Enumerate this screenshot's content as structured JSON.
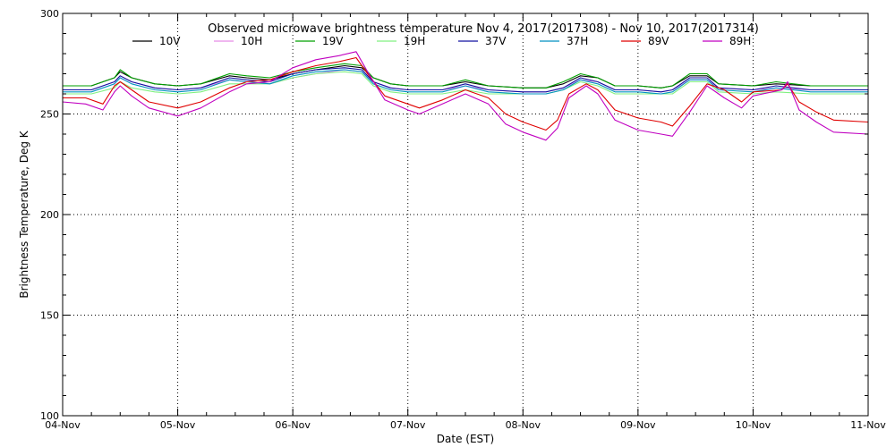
{
  "chart_data": {
    "type": "line",
    "title": "Observed microwave brightness temperature Nov  4, 2017(2017308) - Nov 10, 2017(2017314)",
    "xlabel": "Date (EST)",
    "ylabel": "Brightness Temperature, Deg K",
    "xlim": [
      0,
      7
    ],
    "ylim": [
      100,
      300
    ],
    "grid": true,
    "legend_position": "top",
    "x_tick_labels": [
      "04-Nov",
      "05-Nov",
      "06-Nov",
      "07-Nov",
      "08-Nov",
      "09-Nov",
      "10-Nov",
      "11-Nov"
    ],
    "y_tick_labels": [
      "100",
      "150",
      "200",
      "250",
      "300"
    ],
    "x_units": "days since 04-Nov",
    "series": [
      {
        "name": "10V",
        "color": "#000000",
        "x": [
          0,
          0.25,
          0.45,
          0.5,
          0.6,
          0.8,
          1.0,
          1.2,
          1.45,
          1.6,
          1.8,
          2.0,
          2.2,
          2.45,
          2.6,
          2.7,
          2.85,
          3.0,
          3.3,
          3.5,
          3.7,
          4.0,
          4.2,
          4.35,
          4.5,
          4.65,
          4.8,
          5.0,
          5.2,
          5.3,
          5.45,
          5.6,
          5.7,
          6.0,
          6.2,
          6.5,
          7.0
        ],
        "y": [
          264,
          264,
          268,
          271,
          268,
          265,
          264,
          265,
          269,
          268,
          267,
          270,
          272,
          274,
          273,
          268,
          265,
          264,
          264,
          266,
          264,
          263,
          263,
          265,
          269,
          268,
          264,
          264,
          263,
          264,
          269,
          269,
          265,
          264,
          265,
          264,
          264
        ]
      },
      {
        "name": "10H",
        "color": "#e78ce7",
        "x": [
          0,
          0.25,
          0.45,
          0.5,
          0.6,
          0.8,
          1.0,
          1.2,
          1.45,
          1.6,
          1.8,
          2.0,
          2.2,
          2.45,
          2.6,
          2.7,
          2.85,
          3.0,
          3.3,
          3.5,
          3.7,
          4.0,
          4.2,
          4.35,
          4.5,
          4.65,
          4.8,
          5.0,
          5.2,
          5.3,
          5.45,
          5.6,
          5.7,
          6.0,
          6.2,
          6.5,
          7.0
        ],
        "y": [
          262,
          262,
          266,
          269,
          266,
          263,
          262,
          263,
          267,
          266,
          265,
          268,
          270,
          272,
          271,
          266,
          263,
          262,
          262,
          264,
          262,
          261,
          261,
          263,
          267,
          266,
          262,
          262,
          261,
          262,
          267,
          267,
          263,
          262,
          263,
          262,
          262
        ]
      },
      {
        "name": "19V",
        "color": "#00a000",
        "x": [
          0,
          0.25,
          0.45,
          0.5,
          0.6,
          0.8,
          1.0,
          1.2,
          1.45,
          1.6,
          1.8,
          2.0,
          2.2,
          2.45,
          2.6,
          2.7,
          2.85,
          3.0,
          3.3,
          3.5,
          3.7,
          4.0,
          4.2,
          4.35,
          4.5,
          4.65,
          4.8,
          5.0,
          5.2,
          5.3,
          5.45,
          5.6,
          5.7,
          6.0,
          6.2,
          6.5,
          7.0
        ],
        "y": [
          264,
          264,
          268,
          272,
          268,
          265,
          264,
          265,
          270,
          269,
          268,
          271,
          273,
          275,
          274,
          268,
          265,
          264,
          264,
          267,
          264,
          263,
          263,
          266,
          270,
          268,
          264,
          264,
          263,
          264,
          270,
          270,
          265,
          264,
          266,
          264,
          264
        ]
      },
      {
        "name": "19H",
        "color": "#80f080",
        "x": [
          0,
          0.25,
          0.45,
          0.5,
          0.6,
          0.8,
          1.0,
          1.2,
          1.45,
          1.6,
          1.8,
          2.0,
          2.2,
          2.45,
          2.6,
          2.7,
          2.85,
          3.0,
          3.3,
          3.5,
          3.7,
          4.0,
          4.2,
          4.35,
          4.5,
          4.65,
          4.8,
          5.0,
          5.2,
          5.3,
          5.45,
          5.6,
          5.7,
          6.0,
          6.2,
          6.5,
          7.0
        ],
        "y": [
          260,
          260,
          263,
          266,
          263,
          261,
          260,
          261,
          265,
          265,
          265,
          268,
          270,
          271,
          270,
          264,
          261,
          260,
          260,
          262,
          260,
          260,
          260,
          262,
          266,
          264,
          260,
          260,
          260,
          260,
          266,
          266,
          261,
          260,
          261,
          260,
          260
        ]
      },
      {
        "name": "37V",
        "color": "#1010a0",
        "x": [
          0,
          0.25,
          0.45,
          0.5,
          0.6,
          0.8,
          1.0,
          1.2,
          1.45,
          1.6,
          1.8,
          2.0,
          2.2,
          2.45,
          2.6,
          2.7,
          2.85,
          3.0,
          3.3,
          3.5,
          3.7,
          4.0,
          4.2,
          4.35,
          4.5,
          4.65,
          4.8,
          5.0,
          5.2,
          5.3,
          5.45,
          5.6,
          5.7,
          6.0,
          6.2,
          6.5,
          7.0
        ],
        "y": [
          262,
          262,
          266,
          269,
          266,
          263,
          262,
          263,
          268,
          267,
          266,
          270,
          272,
          273,
          272,
          266,
          263,
          262,
          262,
          265,
          262,
          261,
          261,
          263,
          268,
          266,
          262,
          262,
          261,
          262,
          268,
          268,
          263,
          262,
          264,
          262,
          262
        ]
      },
      {
        "name": "37H",
        "color": "#0090c0",
        "x": [
          0,
          0.25,
          0.45,
          0.5,
          0.6,
          0.8,
          1.0,
          1.2,
          1.45,
          1.6,
          1.8,
          2.0,
          2.2,
          2.45,
          2.6,
          2.7,
          2.85,
          3.0,
          3.3,
          3.5,
          3.7,
          4.0,
          4.2,
          4.35,
          4.5,
          4.65,
          4.8,
          5.0,
          5.2,
          5.3,
          5.45,
          5.6,
          5.7,
          6.0,
          6.2,
          6.5,
          7.0
        ],
        "y": [
          261,
          261,
          265,
          268,
          265,
          262,
          261,
          262,
          267,
          266,
          265,
          269,
          271,
          272,
          271,
          265,
          262,
          261,
          261,
          264,
          261,
          260,
          260,
          262,
          267,
          265,
          261,
          261,
          260,
          261,
          267,
          267,
          262,
          261,
          263,
          261,
          261
        ]
      },
      {
        "name": "89V",
        "color": "#e00000",
        "x": [
          0,
          0.2,
          0.35,
          0.45,
          0.5,
          0.6,
          0.75,
          1.0,
          1.2,
          1.45,
          1.6,
          1.8,
          2.0,
          2.2,
          2.4,
          2.55,
          2.65,
          2.8,
          3.0,
          3.1,
          3.3,
          3.5,
          3.7,
          3.85,
          4.0,
          4.2,
          4.3,
          4.4,
          4.55,
          4.65,
          4.8,
          5.0,
          5.2,
          5.3,
          5.45,
          5.6,
          5.75,
          5.9,
          6.0,
          6.25,
          6.3,
          6.4,
          6.55,
          6.7,
          7.0
        ],
        "y": [
          258,
          258,
          255,
          264,
          266,
          262,
          256,
          253,
          256,
          263,
          266,
          267,
          271,
          274,
          276,
          278,
          270,
          259,
          255,
          253,
          257,
          262,
          258,
          250,
          246,
          242,
          247,
          260,
          265,
          262,
          252,
          248,
          246,
          244,
          254,
          265,
          262,
          256,
          261,
          262,
          265,
          256,
          251,
          247,
          246
        ]
      },
      {
        "name": "89H",
        "color": "#c000c0",
        "x": [
          0,
          0.2,
          0.35,
          0.45,
          0.5,
          0.6,
          0.75,
          1.0,
          1.2,
          1.45,
          1.6,
          1.8,
          2.0,
          2.2,
          2.4,
          2.55,
          2.65,
          2.8,
          3.0,
          3.1,
          3.3,
          3.5,
          3.7,
          3.85,
          4.0,
          4.2,
          4.3,
          4.4,
          4.55,
          4.65,
          4.8,
          5.0,
          5.2,
          5.3,
          5.45,
          5.6,
          5.75,
          5.9,
          6.0,
          6.25,
          6.3,
          6.4,
          6.55,
          6.7,
          7.0
        ],
        "y": [
          256,
          255,
          252,
          261,
          264,
          259,
          253,
          249,
          253,
          261,
          265,
          266,
          273,
          277,
          279,
          281,
          271,
          257,
          252,
          250,
          255,
          260,
          255,
          245,
          241,
          237,
          243,
          258,
          264,
          260,
          247,
          242,
          240,
          239,
          251,
          264,
          258,
          253,
          259,
          262,
          266,
          252,
          246,
          241,
          240
        ]
      }
    ]
  }
}
